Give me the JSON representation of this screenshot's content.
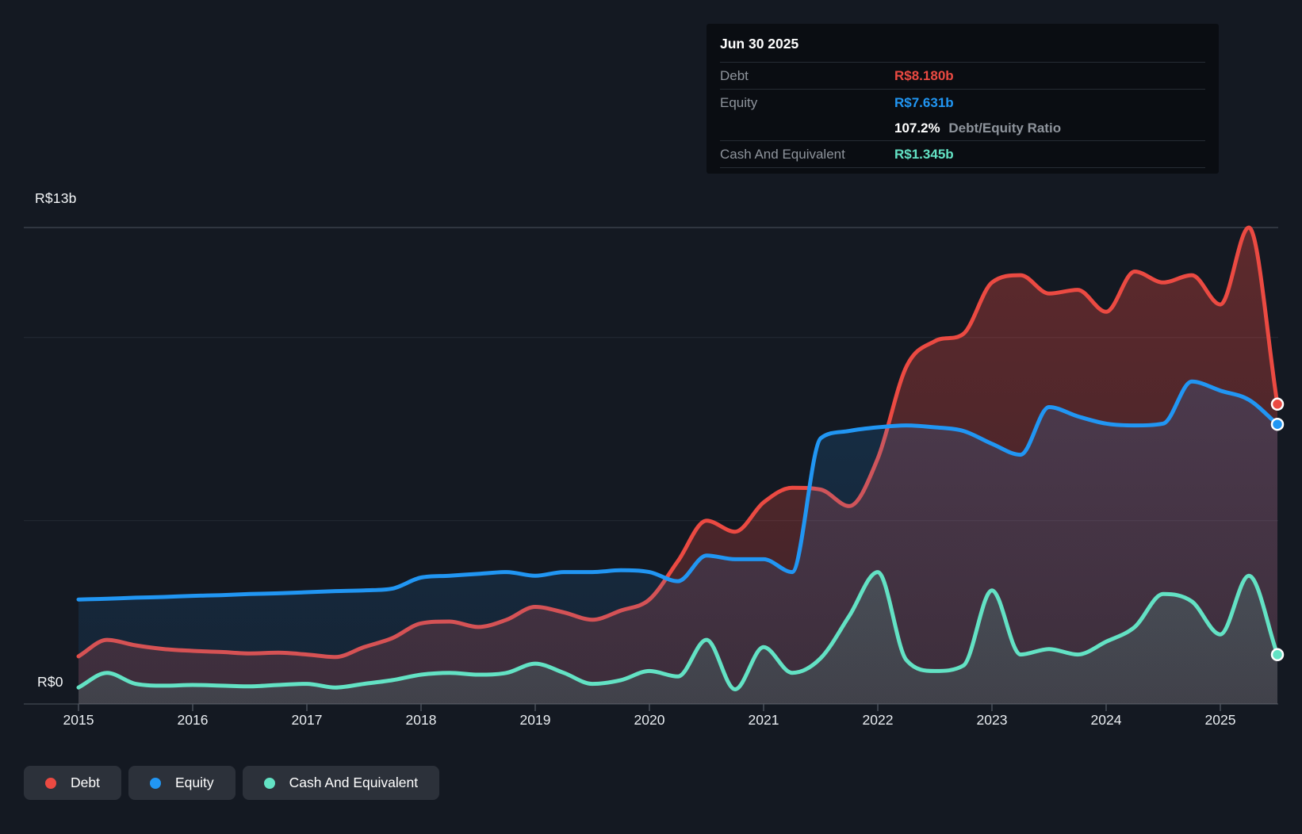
{
  "tooltip": {
    "date": "Jun 30 2025",
    "debt_label": "Debt",
    "debt_value": "R$8.180b",
    "equity_label": "Equity",
    "equity_value": "R$7.631b",
    "ratio_value": "107.2%",
    "ratio_label": "Debt/Equity Ratio",
    "cash_label": "Cash And Equivalent",
    "cash_value": "R$1.345b"
  },
  "y_axis": {
    "top_label": "R$13b",
    "bottom_label": "R$0"
  },
  "x_axis": {
    "years": [
      "2015",
      "2016",
      "2017",
      "2018",
      "2019",
      "2020",
      "2021",
      "2022",
      "2023",
      "2024",
      "2025"
    ]
  },
  "legend": {
    "items": [
      {
        "label": "Debt",
        "color": "#eb4a42"
      },
      {
        "label": "Equity",
        "color": "#2196f3"
      },
      {
        "label": "Cash And Equivalent",
        "color": "#63e2c4"
      }
    ]
  },
  "colors": {
    "background": "#141922",
    "gridline_major": "#39404b",
    "gridline_minor": "#252b35",
    "tick": "#4a515b",
    "debt": "#eb4a42",
    "equity": "#2196f3",
    "cash": "#63e2c4",
    "tooltip_bg": "#0a0d12",
    "label_gray": "#8e949c"
  },
  "chart_data": {
    "type": "area",
    "unit": "R$ billions",
    "ylim": [
      0,
      13
    ],
    "y_gridline_values": [
      0,
      5,
      10,
      13
    ],
    "y_labeled_values": {
      "top": 13,
      "bottom": 0
    },
    "x_tick_years": [
      2015,
      2016,
      2017,
      2018,
      2019,
      2020,
      2021,
      2022,
      2023,
      2024,
      2025
    ],
    "x": [
      2015,
      2015.25,
      2015.5,
      2015.75,
      2016,
      2016.25,
      2016.5,
      2016.75,
      2017,
      2017.25,
      2017.5,
      2017.75,
      2018,
      2018.25,
      2018.5,
      2018.75,
      2019,
      2019.25,
      2019.5,
      2019.75,
      2020,
      2020.25,
      2020.5,
      2020.75,
      2021,
      2021.25,
      2021.5,
      2021.75,
      2022,
      2022.25,
      2022.5,
      2022.75,
      2023,
      2023.25,
      2023.5,
      2023.75,
      2024,
      2024.25,
      2024.5,
      2024.75,
      2025,
      2025.25,
      2025.5
    ],
    "series": [
      {
        "name": "Debt",
        "color": "#eb4a42",
        "values": [
          1.3,
          1.75,
          1.6,
          1.5,
          1.45,
          1.42,
          1.38,
          1.4,
          1.35,
          1.28,
          1.55,
          1.8,
          2.2,
          2.25,
          2.1,
          2.3,
          2.65,
          2.5,
          2.3,
          2.55,
          2.85,
          3.9,
          5.0,
          4.7,
          5.5,
          5.9,
          5.85,
          5.4,
          6.7,
          9.2,
          9.9,
          10.1,
          11.5,
          11.7,
          11.2,
          11.3,
          10.7,
          11.8,
          11.5,
          11.7,
          10.9,
          13.0,
          8.18
        ]
      },
      {
        "name": "Equity",
        "color": "#2196f3",
        "values": [
          2.85,
          2.87,
          2.9,
          2.92,
          2.95,
          2.97,
          3.0,
          3.02,
          3.05,
          3.08,
          3.1,
          3.15,
          3.45,
          3.5,
          3.55,
          3.6,
          3.5,
          3.6,
          3.6,
          3.65,
          3.6,
          3.35,
          4.05,
          3.95,
          3.95,
          3.6,
          7.25,
          7.45,
          7.55,
          7.6,
          7.55,
          7.45,
          7.1,
          6.8,
          8.1,
          7.85,
          7.65,
          7.6,
          7.65,
          8.8,
          8.55,
          8.3,
          7.631
        ]
      },
      {
        "name": "Cash And Equivalent",
        "color": "#63e2c4",
        "values": [
          0.45,
          0.85,
          0.55,
          0.5,
          0.52,
          0.5,
          0.48,
          0.52,
          0.55,
          0.45,
          0.55,
          0.65,
          0.8,
          0.85,
          0.8,
          0.85,
          1.1,
          0.85,
          0.55,
          0.65,
          0.9,
          0.75,
          1.75,
          0.4,
          1.55,
          0.85,
          1.25,
          2.4,
          3.6,
          1.2,
          0.9,
          1.05,
          3.1,
          1.35,
          1.5,
          1.35,
          1.7,
          2.1,
          3.0,
          2.8,
          1.9,
          3.5,
          1.345
        ]
      }
    ],
    "last_point_labels": {
      "date": "Jun 30 2025",
      "Debt": 8.18,
      "Equity": 7.631,
      "Cash And Equivalent": 1.345
    }
  }
}
